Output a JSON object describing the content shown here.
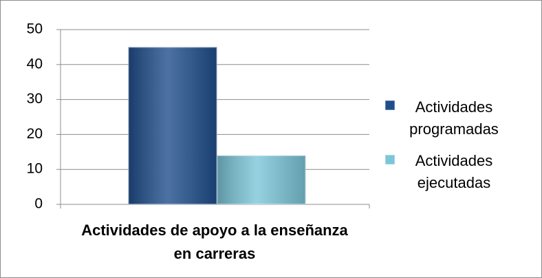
{
  "chart_data": {
    "type": "bar",
    "categories": [
      "Actividades de apoyo a la enseñanza en carreras"
    ],
    "series": [
      {
        "name": "Actividades programadas",
        "color": "#1f4e8c",
        "values": [
          45
        ]
      },
      {
        "name": "Actividades ejecutadas",
        "color": "#7cc6d9",
        "values": [
          14
        ]
      }
    ],
    "ylim": [
      0,
      50
    ],
    "yticks": [
      0,
      10,
      20,
      30,
      40,
      50
    ],
    "grid": true,
    "legend": "right"
  }
}
